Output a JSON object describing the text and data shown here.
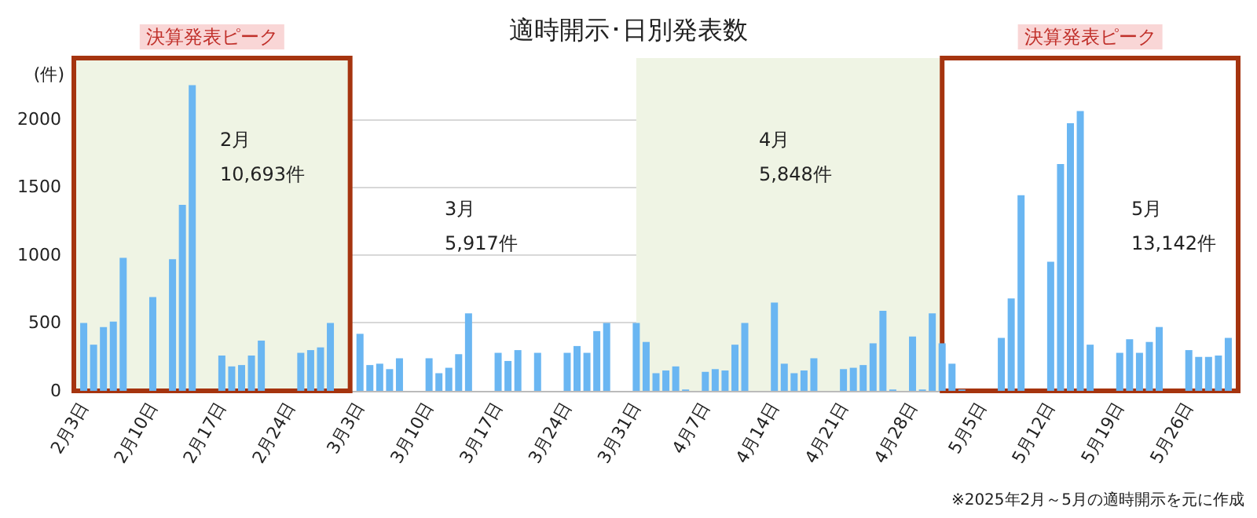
{
  "chart_data": {
    "type": "bar",
    "title": "適時開示･日別発表数",
    "ylabel": "(件)",
    "x": [
      "--02-03",
      "--02-04",
      "--02-05",
      "--02-06",
      "--02-07",
      "--02-10",
      "--02-12",
      "--02-13",
      "--02-14",
      "--02-17",
      "--02-18",
      "--02-19",
      "--02-20",
      "--02-21",
      "--02-25",
      "--02-26",
      "--02-27",
      "--02-28",
      "--03-03",
      "--03-04",
      "--03-05",
      "--03-06",
      "--03-07",
      "--03-10",
      "--03-11",
      "--03-12",
      "--03-13",
      "--03-14",
      "--03-17",
      "--03-18",
      "--03-19",
      "--03-21",
      "--03-24",
      "--03-25",
      "--03-26",
      "--03-27",
      "--03-28",
      "--03-31",
      "--04-01",
      "--04-02",
      "--04-03",
      "--04-04",
      "--04-05",
      "--04-07",
      "--04-08",
      "--04-09",
      "--04-10",
      "--04-11",
      "--04-14",
      "--04-15",
      "--04-16",
      "--04-17",
      "--04-18",
      "--04-21",
      "--04-22",
      "--04-23",
      "--04-24",
      "--04-25",
      "--04-26",
      "--04-28",
      "--04-29",
      "--04-30",
      "--05-01",
      "--05-02",
      "--05-03",
      "--05-07",
      "--05-08",
      "--05-09",
      "--05-12",
      "--05-13",
      "--05-14",
      "--05-15",
      "--05-16",
      "--05-19",
      "--05-20",
      "--05-21",
      "--05-22",
      "--05-23",
      "--05-26",
      "--05-27",
      "--05-28",
      "--05-29",
      "--05-30"
    ],
    "values": [
      500,
      340,
      470,
      510,
      980,
      690,
      970,
      1370,
      2250,
      260,
      180,
      190,
      260,
      370,
      280,
      300,
      320,
      500,
      420,
      190,
      200,
      160,
      240,
      240,
      130,
      170,
      270,
      570,
      280,
      220,
      300,
      280,
      280,
      330,
      280,
      440,
      500,
      500,
      360,
      130,
      150,
      180,
      10,
      140,
      160,
      150,
      340,
      500,
      650,
      200,
      130,
      150,
      240,
      160,
      170,
      190,
      350,
      590,
      10,
      400,
      10,
      570,
      350,
      200,
      10,
      390,
      680,
      1440,
      950,
      1670,
      1970,
      2060,
      340,
      280,
      380,
      280,
      360,
      470,
      300,
      250,
      250,
      260,
      390
    ],
    "color": "#6ab6f2",
    "xlim": [
      "--02-02",
      "--05-31"
    ],
    "xticks": [
      {
        "value": "--02-03",
        "label": "2月3日"
      },
      {
        "value": "--02-10",
        "label": "2月10日"
      },
      {
        "value": "--02-17",
        "label": "2月17日"
      },
      {
        "value": "--02-24",
        "label": "2月24日"
      },
      {
        "value": "--03-03",
        "label": "3月3日"
      },
      {
        "value": "--03-10",
        "label": "3月10日"
      },
      {
        "value": "--03-17",
        "label": "3月17日"
      },
      {
        "value": "--03-24",
        "label": "3月24日"
      },
      {
        "value": "--03-31",
        "label": "3月31日"
      },
      {
        "value": "--04-07",
        "label": "4月7日"
      },
      {
        "value": "--04-14",
        "label": "4月14日"
      },
      {
        "value": "--04-21",
        "label": "4月21日"
      },
      {
        "value": "--04-28",
        "label": "4月28日"
      },
      {
        "value": "--05-05",
        "label": "5月5日"
      },
      {
        "value": "--05-12",
        "label": "5月12日"
      },
      {
        "value": "--05-19",
        "label": "5月19日"
      },
      {
        "value": "--05-26",
        "label": "5月26日"
      }
    ],
    "ylim": [
      0,
      2450
    ],
    "yticks": [
      0,
      500,
      1000,
      1500,
      2000
    ],
    "grid": "y",
    "bands": [
      {
        "axis": "x",
        "from": "--02-02",
        "to": "--03-02",
        "label": "決算発表ピーク",
        "color": "#eff4e4"
      },
      {
        "axis": "x",
        "from": "--03-31",
        "to": "--05-01",
        "color": "#eff4e4"
      },
      {
        "axis": "x",
        "from": "--05-01",
        "to": "--05-31",
        "label": "決算発表ピーク",
        "color": "#ffffff"
      }
    ],
    "annotations": [
      "2月\n10,693件",
      "3月\n5,917件",
      "4月\n5,848件",
      "5月\n13,142件",
      "※2025年2月～5月の適時開示を元に作成"
    ]
  }
}
